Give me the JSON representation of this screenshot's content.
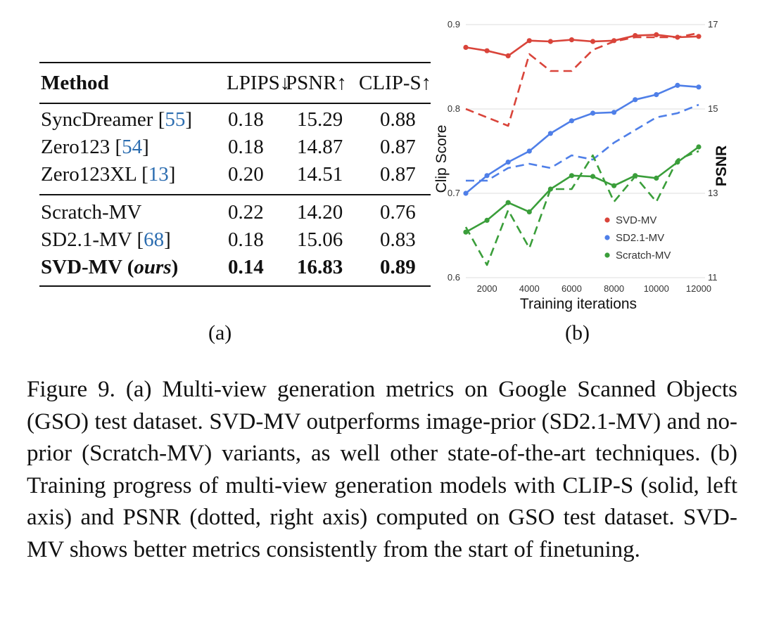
{
  "table": {
    "headers": {
      "method": "Method",
      "lpips": "LPIPS↓",
      "psnr": "PSNR↑",
      "clip": "CLIP-S↑"
    },
    "group1": [
      {
        "name": "SyncDreamer",
        "ref": "55",
        "lpips": "0.18",
        "psnr": "15.29",
        "clip": "0.88"
      },
      {
        "name": "Zero123",
        "ref": "54",
        "lpips": "0.18",
        "psnr": "14.87",
        "clip": "0.87"
      },
      {
        "name": "Zero123XL",
        "ref": "13",
        "lpips": "0.20",
        "psnr": "14.51",
        "clip": "0.87"
      }
    ],
    "group2": [
      {
        "name": "Scratch-MV",
        "lpips": "0.22",
        "psnr": "14.20",
        "clip": "0.76"
      },
      {
        "name": "SD2.1-MV",
        "ref": "68",
        "lpips": "0.18",
        "psnr": "15.06",
        "clip": "0.83"
      },
      {
        "name": "SVD-MV",
        "name_suffix": "ours",
        "lpips": "0.14",
        "psnr": "16.83",
        "clip": "0.89"
      }
    ]
  },
  "labels": {
    "a": "(a)",
    "b": "(b)"
  },
  "chart_data": {
    "type": "line",
    "xlabel": "Training iterations",
    "ylabel": "Clip Score",
    "ylabel_right": "PSNR",
    "xlim": [
      1000,
      12300
    ],
    "ylim": [
      0.6,
      0.9
    ],
    "ylim_right": [
      11,
      17
    ],
    "xticks": [
      2000,
      4000,
      6000,
      8000,
      10000,
      12000
    ],
    "yticks": [
      0.6,
      0.7,
      0.8,
      0.9
    ],
    "yticks_right": [
      11,
      13,
      15,
      17
    ],
    "legend_position": "bottom-right",
    "x": [
      1000,
      2000,
      3000,
      4000,
      5000,
      6000,
      7000,
      8000,
      9000,
      10000,
      11000,
      12000
    ],
    "series": [
      {
        "name": "SVD-MV",
        "color": "#d9443a",
        "metric": "CLIP-S",
        "axis": "left",
        "style": "solid",
        "values": [
          0.873,
          0.869,
          0.863,
          0.881,
          0.88,
          0.882,
          0.88,
          0.881,
          0.887,
          0.888,
          0.885,
          0.886
        ]
      },
      {
        "name": "SVD-MV",
        "color": "#d9443a",
        "metric": "PSNR",
        "axis": "right",
        "style": "dashed",
        "values": [
          15.0,
          14.8,
          14.6,
          16.3,
          15.9,
          15.9,
          16.4,
          16.6,
          16.7,
          16.7,
          16.7,
          16.8
        ]
      },
      {
        "name": "SD2.1-MV",
        "color": "#4f7fe8",
        "metric": "CLIP-S",
        "axis": "left",
        "style": "solid",
        "values": [
          0.7,
          0.721,
          0.737,
          0.75,
          0.771,
          0.786,
          0.795,
          0.796,
          0.811,
          0.817,
          0.828,
          0.826
        ]
      },
      {
        "name": "SD2.1-MV",
        "color": "#4f7fe8",
        "metric": "PSNR",
        "axis": "right",
        "style": "dashed",
        "values": [
          13.3,
          13.3,
          13.6,
          13.7,
          13.6,
          13.9,
          13.8,
          14.2,
          14.5,
          14.8,
          14.9,
          15.1
        ]
      },
      {
        "name": "Scratch-MV",
        "color": "#3a9e3a",
        "metric": "CLIP-S",
        "axis": "left",
        "style": "solid",
        "values": [
          0.654,
          0.668,
          0.689,
          0.678,
          0.705,
          0.721,
          0.72,
          0.709,
          0.721,
          0.718,
          0.737,
          0.755
        ]
      },
      {
        "name": "Scratch-MV",
        "color": "#3a9e3a",
        "metric": "PSNR",
        "axis": "right",
        "style": "dashed",
        "values": [
          12.2,
          11.3,
          12.6,
          11.7,
          13.1,
          13.1,
          13.9,
          12.8,
          13.4,
          12.8,
          13.8,
          14.0
        ]
      }
    ],
    "legend": [
      {
        "name": "SVD-MV",
        "color": "#d9443a"
      },
      {
        "name": "SD2.1-MV",
        "color": "#4f7fe8"
      },
      {
        "name": "Scratch-MV",
        "color": "#3a9e3a"
      }
    ]
  },
  "caption": "Figure 9. (a) Multi-view generation metrics on Google Scanned Objects (GSO) test dataset. SVD-MV outperforms image-prior (SD2.1-MV) and no-prior (Scratch-MV) variants, as well other state-of-the-art techniques. (b) Training progress of multi-view generation models with CLIP-S (solid, left axis) and PSNR (dotted, right axis) computed on GSO test dataset. SVD-MV shows better metrics consistently from the start of finetuning."
}
